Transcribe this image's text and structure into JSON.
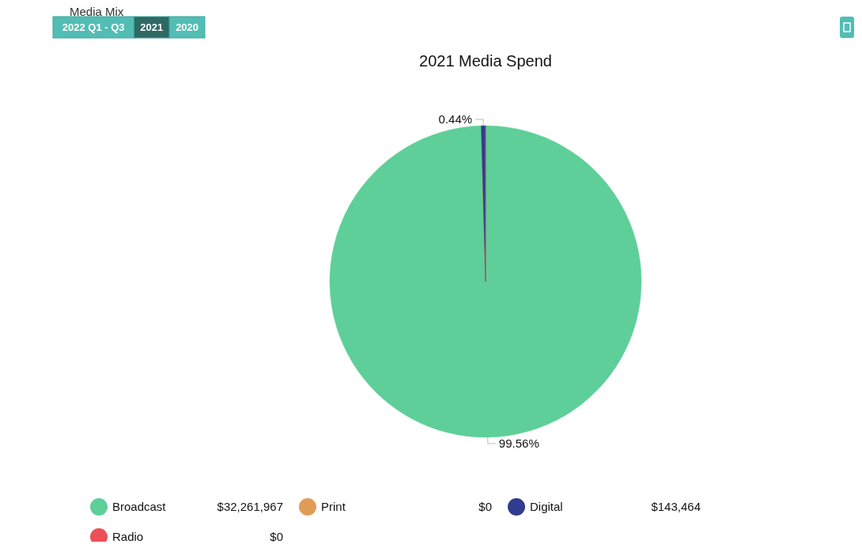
{
  "chart_data": {
    "type": "pie",
    "title": "Media Mix",
    "subtitle": "2021 Media Spend",
    "categories": [
      "Broadcast",
      "Print",
      "Digital",
      "Radio"
    ],
    "values": [
      32261967,
      0,
      143464,
      0
    ],
    "value_labels": [
      "$32,261,967",
      "$0",
      "$143,464",
      "$0"
    ],
    "colors": [
      "#5ecf98",
      "#e09c57",
      "#2f3c8f",
      "#eb5058"
    ],
    "legend": "bottom",
    "annotations": [
      "2022 Q1 - Q3",
      "2021",
      "2020",
      {
        "text": "0.44%",
        "x": "Digital"
      },
      {
        "text": "99.56%",
        "x": "Broadcast"
      }
    ]
  }
}
